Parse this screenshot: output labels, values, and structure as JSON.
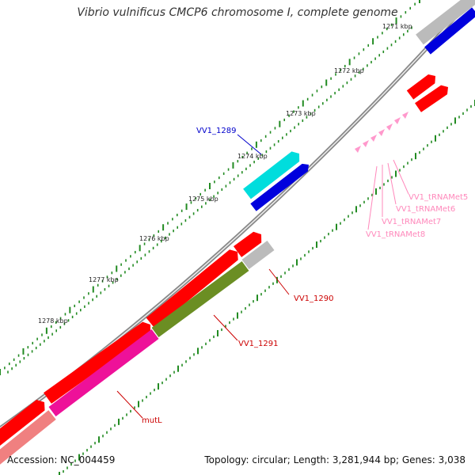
{
  "title": "Vibrio vulnificus CMCP6 chromosome I, complete genome",
  "footer": {
    "accession": "Accession: NC_004459",
    "summary": "Topology: circular; Length: 3,281,944 bp; Genes: 3,038"
  },
  "ticks": [
    "1271 kbp",
    "1272 kbp",
    "1273 kbp",
    "1274 kbp",
    "1275 kbp",
    "1276 kbp",
    "1277 kbp",
    "1278 kbp"
  ],
  "features": [
    {
      "name": "VV1_1289",
      "color": "#0000cc"
    },
    {
      "name": "VV1_1290",
      "color": "#cc0000"
    },
    {
      "name": "VV1_1291",
      "color": "#cc0000"
    },
    {
      "name": "mutL",
      "color": "#cc0000"
    },
    {
      "name": "VV1_tRNAMet5",
      "color": "#ff88bb"
    },
    {
      "name": "VV1_tRNAMet6",
      "color": "#ff88bb"
    },
    {
      "name": "VV1_tRNAMet7",
      "color": "#ff88bb"
    },
    {
      "name": "VV1_tRNAMet8",
      "color": "#ff88bb"
    }
  ],
  "colors": {
    "backbone": "#888888",
    "gene_red": "#ff0000",
    "gene_blue": "#0000dd",
    "gene_cyan": "#00dddd",
    "gene_gray": "#bbbbbb",
    "gene_olive": "#6b8e23",
    "gene_magenta": "#ee1199",
    "gene_salmon": "#f08080",
    "trna": "#ff99cc",
    "tick_green": "#228b22"
  }
}
